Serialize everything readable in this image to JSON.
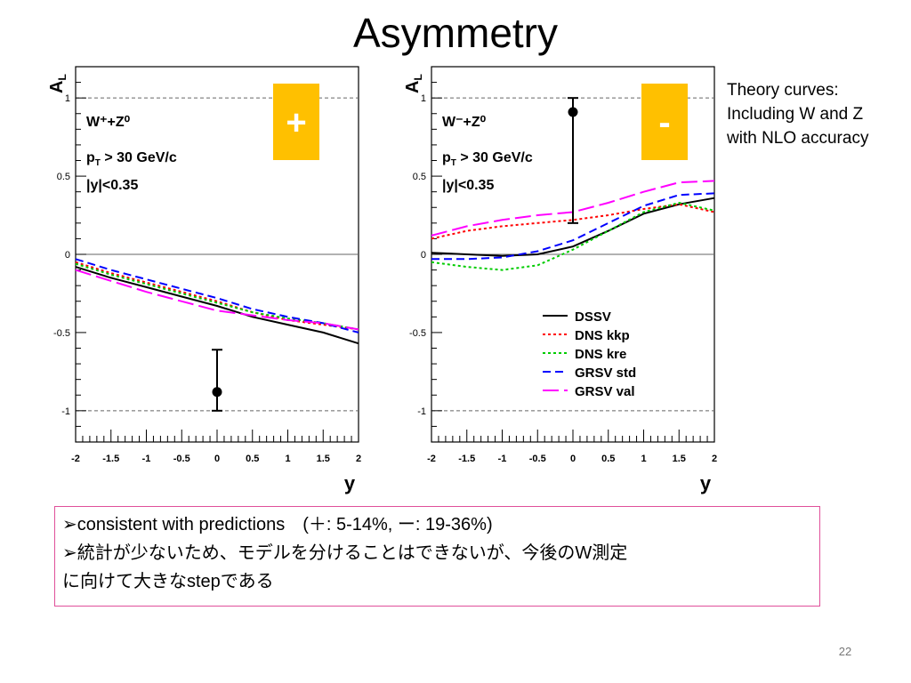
{
  "slide": {
    "title": "Asymmetry",
    "page_number": "22",
    "theory_note": [
      "Theory curves:",
      "Including W and Z",
      "with NLO accuracy"
    ],
    "summary": [
      "➢consistent with predictions　(＋: 5-14%, ー: 19-36%)",
      "➢統計が少ないため、モデルを分けることはできないが、今後のW測定",
      "に向けて大きなstepである"
    ],
    "accent_color": "#e0509a",
    "badge_color": "#ffc000"
  },
  "chart_data": [
    {
      "type": "line",
      "badge": "+",
      "ylabel": "A_L",
      "xlabel": "y",
      "annotation": [
        "W⁺+Z⁰",
        "p_T > 30 GeV/c",
        "|y|<0.35"
      ],
      "xlim": [
        -2,
        2
      ],
      "ylim": [
        -1.2,
        1.2
      ],
      "x_ticks": [
        "-2",
        "-1.5",
        "-1",
        "-0.5",
        "0",
        "0.5",
        "1",
        "1.5",
        "2"
      ],
      "y_ticks": [
        "1",
        "0.5",
        "0",
        "-0.5",
        "-1"
      ],
      "x": [
        -2,
        -1.5,
        -1,
        -0.5,
        0,
        0.5,
        1,
        1.5,
        2
      ],
      "series": [
        {
          "name": "DSSV",
          "color": "#000000",
          "dash": "solid",
          "values": [
            -0.08,
            -0.15,
            -0.21,
            -0.27,
            -0.33,
            -0.4,
            -0.45,
            -0.5,
            -0.57
          ]
        },
        {
          "name": "DNS kkp",
          "color": "#ff0000",
          "dash": "dot",
          "values": [
            -0.05,
            -0.12,
            -0.18,
            -0.24,
            -0.3,
            -0.37,
            -0.42,
            -0.45,
            -0.48
          ]
        },
        {
          "name": "DNS kre",
          "color": "#00cc00",
          "dash": "dot",
          "values": [
            -0.06,
            -0.13,
            -0.19,
            -0.25,
            -0.31,
            -0.37,
            -0.41,
            -0.44,
            -0.48
          ]
        },
        {
          "name": "GRSV std",
          "color": "#0000ff",
          "dash": "dash",
          "values": [
            -0.03,
            -0.1,
            -0.16,
            -0.22,
            -0.28,
            -0.35,
            -0.4,
            -0.44,
            -0.5
          ]
        },
        {
          "name": "GRSV val",
          "color": "#ff00ff",
          "dash": "longdash",
          "values": [
            -0.1,
            -0.17,
            -0.24,
            -0.3,
            -0.36,
            -0.39,
            -0.42,
            -0.44,
            -0.48
          ]
        }
      ],
      "measurement": {
        "x": 0,
        "y": -0.88,
        "err_low": -1.0,
        "err_high": -0.61
      },
      "legend": false
    },
    {
      "type": "line",
      "badge": "-",
      "ylabel": "A_L",
      "xlabel": "y",
      "annotation": [
        "W⁻+Z⁰",
        "p_T > 30 GeV/c",
        "|y|<0.35"
      ],
      "xlim": [
        -2,
        2
      ],
      "ylim": [
        -1.2,
        1.2
      ],
      "x_ticks": [
        "-2",
        "-1.5",
        "-1",
        "-0.5",
        "0",
        "0.5",
        "1",
        "1.5",
        "2"
      ],
      "y_ticks": [
        "1",
        "0.5",
        "0",
        "-0.5",
        "-1"
      ],
      "x": [
        -2,
        -1.5,
        -1,
        -0.5,
        0,
        0.5,
        1,
        1.5,
        2
      ],
      "series": [
        {
          "name": "DSSV",
          "color": "#000000",
          "dash": "solid",
          "values": [
            0.01,
            0.0,
            -0.01,
            0.0,
            0.05,
            0.15,
            0.26,
            0.32,
            0.36
          ]
        },
        {
          "name": "DNS kkp",
          "color": "#ff0000",
          "dash": "dot",
          "values": [
            0.1,
            0.15,
            0.18,
            0.2,
            0.22,
            0.25,
            0.29,
            0.32,
            0.27
          ]
        },
        {
          "name": "DNS kre",
          "color": "#00cc00",
          "dash": "dot",
          "values": [
            -0.05,
            -0.08,
            -0.1,
            -0.07,
            0.03,
            0.15,
            0.27,
            0.33,
            0.28
          ]
        },
        {
          "name": "GRSV std",
          "color": "#0000ff",
          "dash": "dash",
          "values": [
            -0.03,
            -0.03,
            -0.02,
            0.02,
            0.09,
            0.2,
            0.31,
            0.38,
            0.39
          ]
        },
        {
          "name": "GRSV val",
          "color": "#ff00ff",
          "dash": "longdash",
          "values": [
            0.12,
            0.18,
            0.22,
            0.25,
            0.27,
            0.33,
            0.4,
            0.46,
            0.47
          ]
        }
      ],
      "measurement": {
        "x": 0,
        "y": 0.91,
        "err_low": 0.2,
        "err_high": 1.0
      },
      "legend": true
    }
  ]
}
